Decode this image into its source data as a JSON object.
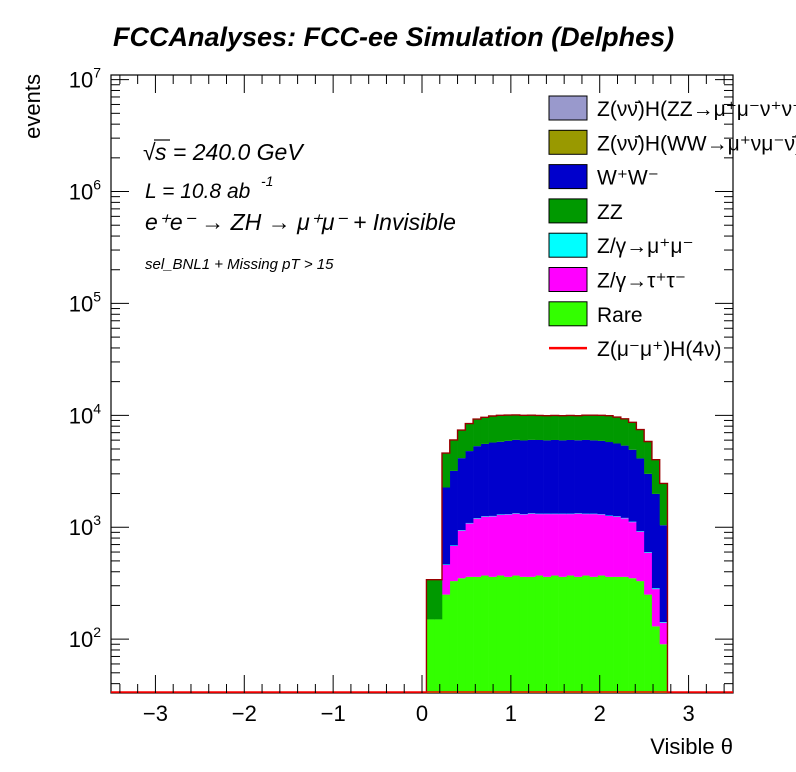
{
  "chart_data": {
    "type": "bar",
    "title": "FCCAnalyses: FCC-ee Simulation (Delphes)",
    "xlabel": "Visible θ",
    "ylabel": "events",
    "xlim": [
      -3.5,
      3.5
    ],
    "ylim": [
      33,
      11000000
    ],
    "yscale": "log",
    "stacked": true,
    "grid": false,
    "legend_position": "top-right",
    "x_ticks": [
      "−3",
      "−2",
      "−1",
      "0",
      "1",
      "2",
      "3"
    ],
    "x_tick_values": [
      -3,
      -2,
      -1,
      0,
      1,
      2,
      3
    ],
    "y_ticks": [
      {
        "base": "10",
        "exp": "2",
        "value": 100
      },
      {
        "base": "10",
        "exp": "3",
        "value": 1000
      },
      {
        "base": "10",
        "exp": "4",
        "value": 10000
      },
      {
        "base": "10",
        "exp": "5",
        "value": 100000
      },
      {
        "base": "10",
        "exp": "6",
        "value": 1000000
      },
      {
        "base": "10",
        "exp": "7",
        "value": 10000000
      }
    ],
    "annotations": {
      "sqrt_s": "s = 240.0 GeV",
      "lumi_prefix": "L = 10.8 ab",
      "lumi_exp": "-1",
      "process": "e⁺e⁻ → ZH → μ⁺μ⁻ + Invisible",
      "selection": "sel_BNL1 + Missing pT > 15"
    },
    "bins": {
      "start": 0.05,
      "width": 0.0875,
      "count": 33
    },
    "series": [
      {
        "name": "Rare",
        "color": "#33ff00",
        "values": [
          150,
          150,
          250,
          330,
          350,
          360,
          360,
          370,
          360,
          370,
          360,
          370,
          360,
          360,
          370,
          360,
          370,
          360,
          370,
          360,
          370,
          360,
          370,
          360,
          360,
          360,
          350,
          330,
          250,
          130,
          90,
          33,
          33
        ]
      },
      {
        "name": "Z/γ→τ⁺τ⁻",
        "color": "#ff00ff",
        "values": [
          0,
          0,
          210,
          350,
          580,
          720,
          830,
          870,
          890,
          920,
          940,
          950,
          940,
          960,
          940,
          950,
          940,
          950,
          940,
          960,
          940,
          950,
          930,
          900,
          880,
          840,
          760,
          580,
          340,
          150,
          50,
          0,
          0
        ]
      },
      {
        "name": "Z/γ→μ⁺μ⁻",
        "color": "#00ffff",
        "values": [
          0,
          0,
          5,
          8,
          10,
          12,
          12,
          12,
          12,
          12,
          12,
          12,
          12,
          12,
          12,
          12,
          12,
          12,
          12,
          12,
          12,
          12,
          12,
          12,
          12,
          12,
          12,
          10,
          8,
          5,
          2,
          0,
          0
        ]
      },
      {
        "name": "W⁺W⁻",
        "color": "#0000cc",
        "values": [
          0,
          0,
          1800,
          2500,
          3200,
          3700,
          4100,
          4300,
          4450,
          4500,
          4600,
          4700,
          4650,
          4700,
          4700,
          4650,
          4700,
          4650,
          4700,
          4650,
          4700,
          4650,
          4600,
          4500,
          4350,
          4150,
          3800,
          3200,
          2400,
          1700,
          900,
          0,
          0
        ]
      },
      {
        "name": "ZZ",
        "color": "#009900",
        "values": [
          190,
          190,
          2300,
          2800,
          3200,
          3600,
          3900,
          4000,
          4100,
          4150,
          4100,
          4000,
          4000,
          3950,
          3900,
          3900,
          3900,
          3900,
          3900,
          3900,
          3950,
          4000,
          4050,
          4100,
          4000,
          3900,
          3700,
          3300,
          2800,
          2000,
          1400,
          0,
          0
        ]
      },
      {
        "name": "Z(νν̄)H(WW→μ⁺νμ⁻ν̄)",
        "color": "#999900",
        "values": [
          0,
          0,
          30,
          35,
          40,
          42,
          44,
          45,
          45,
          45,
          45,
          45,
          45,
          45,
          45,
          45,
          45,
          45,
          45,
          45,
          45,
          45,
          45,
          45,
          45,
          44,
          42,
          40,
          35,
          28,
          20,
          0,
          0
        ]
      },
      {
        "name": "Z(νν̄)H(ZZ→μ⁺μ⁻ν⁺ν⁻)",
        "color": "#9999cc",
        "values": [
          0,
          0,
          3,
          4,
          4,
          4,
          4,
          4,
          4,
          4,
          4,
          4,
          4,
          4,
          4,
          4,
          4,
          4,
          4,
          4,
          4,
          4,
          4,
          4,
          4,
          4,
          4,
          4,
          4,
          3,
          2,
          0,
          0
        ]
      }
    ],
    "legend": [
      {
        "label": "Z(νν̄)H(ZZ→μ⁺μ⁻ν⁺ν⁻)",
        "color": "#9999cc",
        "kind": "box"
      },
      {
        "label": "Z(νν̄)H(WW→μ⁺νμ⁻ν̄)",
        "color": "#999900",
        "kind": "box"
      },
      {
        "label": "W⁺W⁻",
        "color": "#0000cc",
        "kind": "box"
      },
      {
        "label": "ZZ",
        "color": "#009900",
        "kind": "box"
      },
      {
        "label": "Z/γ→μ⁺μ⁻",
        "color": "#00ffff",
        "kind": "box"
      },
      {
        "label": "Z/γ→τ⁺τ⁻",
        "color": "#ff00ff",
        "kind": "box"
      },
      {
        "label": "Rare",
        "color": "#33ff00",
        "kind": "box"
      },
      {
        "label": "Z(μ⁻μ⁺)H(4ν)",
        "color": "#ff0000",
        "kind": "line"
      }
    ],
    "signal": {
      "name": "Z(μ⁻μ⁺)H(4ν)",
      "color": "#ff0000",
      "values": [
        0,
        0,
        1,
        1,
        1,
        1,
        1,
        1,
        1,
        1,
        1,
        1,
        1,
        1,
        1,
        1,
        1,
        1,
        1,
        1,
        1,
        1,
        1,
        1,
        1,
        1,
        1,
        1,
        1,
        1,
        1,
        0,
        0
      ]
    }
  }
}
